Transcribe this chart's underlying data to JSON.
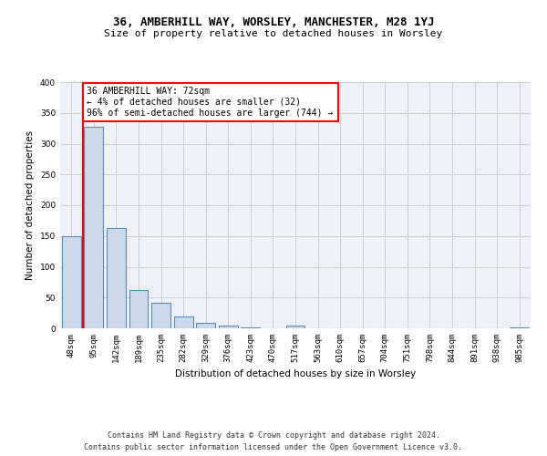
{
  "title": "36, AMBERHILL WAY, WORSLEY, MANCHESTER, M28 1YJ",
  "subtitle": "Size of property relative to detached houses in Worsley",
  "xlabel": "Distribution of detached houses by size in Worsley",
  "ylabel": "Number of detached properties",
  "categories": [
    "48sqm",
    "95sqm",
    "142sqm",
    "189sqm",
    "235sqm",
    "282sqm",
    "329sqm",
    "376sqm",
    "423sqm",
    "470sqm",
    "517sqm",
    "563sqm",
    "610sqm",
    "657sqm",
    "704sqm",
    "751sqm",
    "798sqm",
    "844sqm",
    "891sqm",
    "938sqm",
    "985sqm"
  ],
  "values": [
    150,
    327,
    163,
    62,
    42,
    20,
    9,
    4,
    2,
    0,
    4,
    0,
    0,
    0,
    0,
    0,
    0,
    0,
    0,
    0,
    2
  ],
  "bar_color": "#ccd9e8",
  "bar_edge_color": "#5b8db8",
  "annotation_text_line1": "36 AMBERHILL WAY: 72sqm",
  "annotation_text_line2": "← 4% of detached houses are smaller (32)",
  "annotation_text_line3": "96% of semi-detached houses are larger (744) →",
  "annotation_box_color": "white",
  "annotation_box_edge_color": "red",
  "red_line_color": "red",
  "ylim": [
    0,
    400
  ],
  "yticks": [
    0,
    50,
    100,
    150,
    200,
    250,
    300,
    350,
    400
  ],
  "grid_color": "#cccccc",
  "bg_color": "#eef2f8",
  "footer_line1": "Contains HM Land Registry data © Crown copyright and database right 2024.",
  "footer_line2": "Contains public sector information licensed under the Open Government Licence v3.0.",
  "title_fontsize": 9,
  "subtitle_fontsize": 8,
  "axis_label_fontsize": 7.5,
  "tick_fontsize": 6.5,
  "annotation_fontsize": 7,
  "footer_fontsize": 6
}
